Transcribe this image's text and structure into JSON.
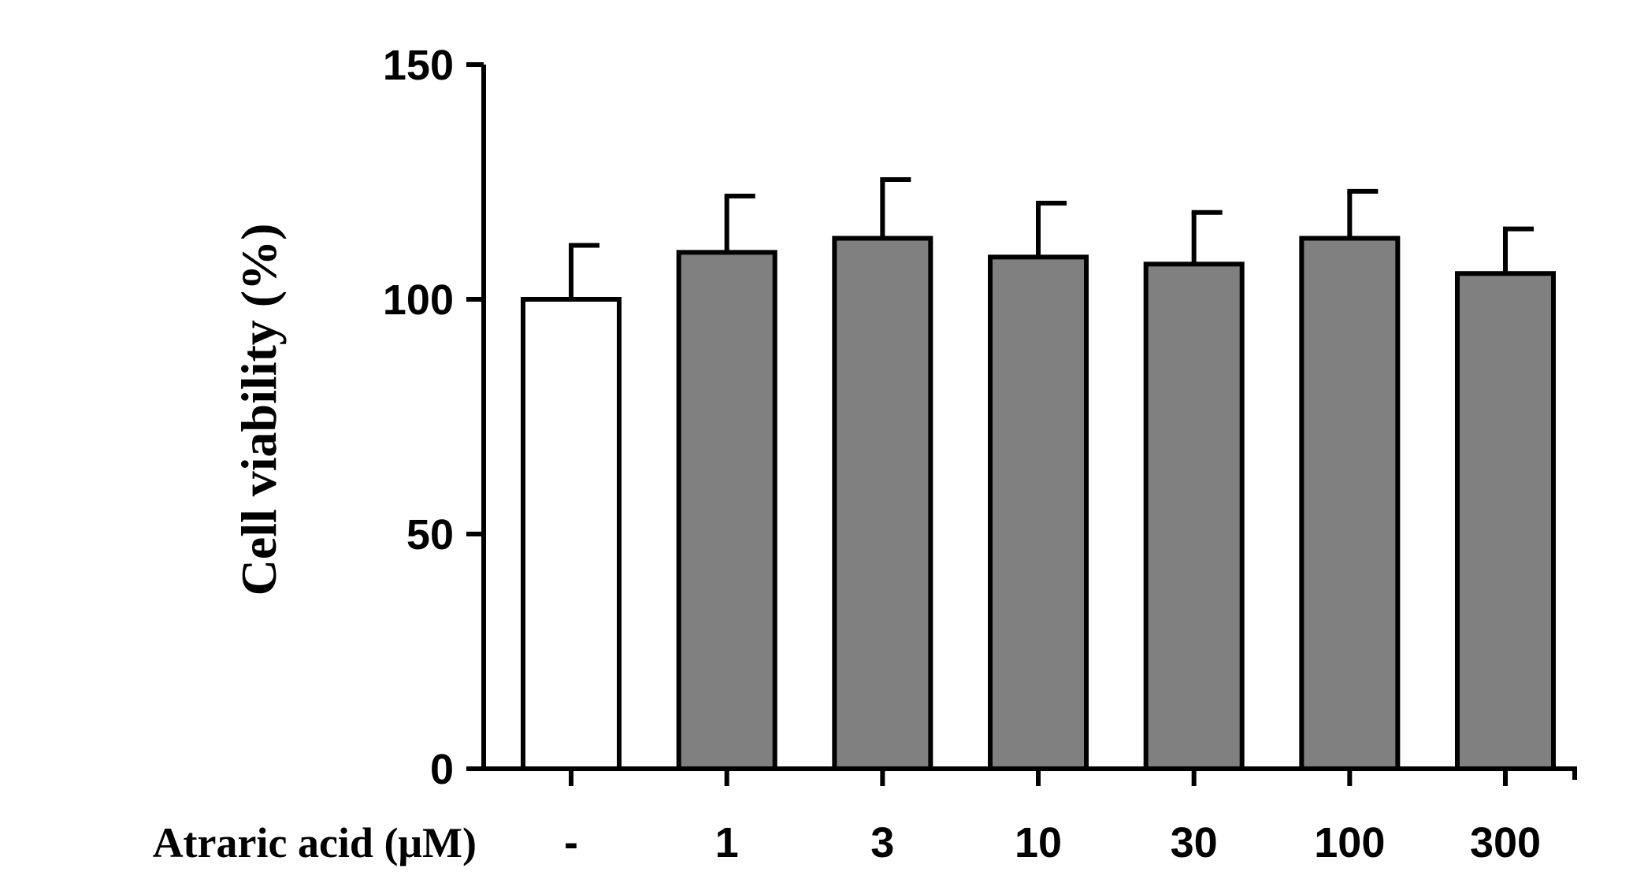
{
  "chart_data": {
    "type": "bar",
    "title": "",
    "xlabel": "Atraric acid (μM)",
    "ylabel": "Cell viability  (%)",
    "categories": [
      "-",
      "1",
      "3",
      "10",
      "30",
      "100",
      "300"
    ],
    "values": [
      100,
      110,
      113,
      109,
      107.5,
      113,
      105.5
    ],
    "errors": [
      11.5,
      12,
      12.5,
      11.5,
      11,
      10,
      9.5
    ],
    "ylim": [
      0,
      150
    ],
    "yticks": [
      "0",
      "50",
      "100",
      "150"
    ],
    "grid": false,
    "legend": "none",
    "colors": {
      "control": "#ffffff",
      "treated": "#808080",
      "stroke": "#000000"
    }
  }
}
